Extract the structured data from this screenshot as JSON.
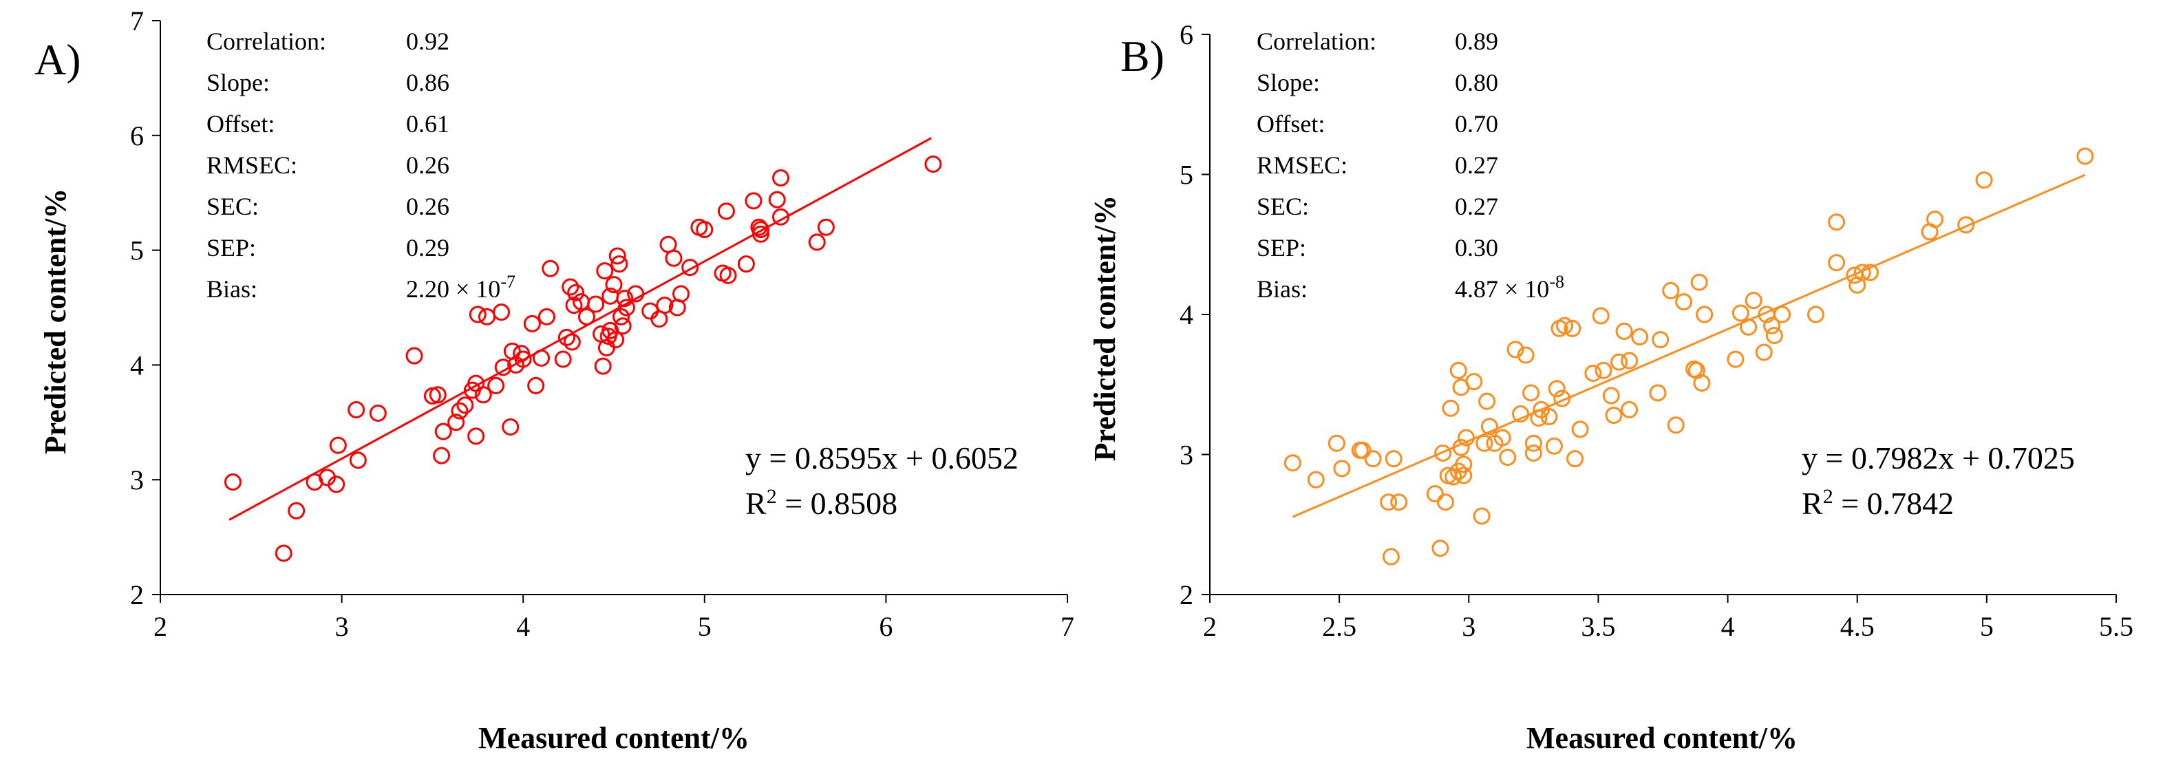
{
  "chart_data": [
    {
      "type": "scatter",
      "panel_label": "A)",
      "color": "#ff0000",
      "xlabel": "Measured content/%",
      "ylabel": "Predicted content/%",
      "xlim": [
        2,
        7
      ],
      "ylim": [
        2,
        7
      ],
      "xticks": [
        2,
        3,
        4,
        5,
        6,
        7
      ],
      "yticks": [
        2,
        3,
        4,
        5,
        6,
        7
      ],
      "xtick_labels": [
        "2",
        "3",
        "4",
        "5",
        "6",
        "7"
      ],
      "ytick_labels": [
        "2",
        "3",
        "4",
        "5",
        "6",
        "7"
      ],
      "stats": [
        {
          "label": "Correlation:",
          "value": "0.92"
        },
        {
          "label": "Slope:",
          "value": "0.86"
        },
        {
          "label": "Offset:",
          "value": "0.61"
        },
        {
          "label": "RMSEC:",
          "value": "0.26"
        },
        {
          "label": "SEC:",
          "value": "0.26"
        },
        {
          "label": "SEP:",
          "value": "0.29"
        },
        {
          "label": "Bias:",
          "value": "2.20 × 10",
          "exponent": "-7"
        }
      ],
      "equation": "y = 0.8595x + 0.6052",
      "r2_label": "R",
      "r2_sup": "2",
      "r2_value": " = 0.8508",
      "fit": {
        "slope": 0.8595,
        "intercept": 0.6052,
        "x_range": [
          2.38,
          6.25
        ]
      },
      "points": [
        [
          2.4,
          2.98
        ],
        [
          2.68,
          2.36
        ],
        [
          2.75,
          2.73
        ],
        [
          2.85,
          2.98
        ],
        [
          2.92,
          3.02
        ],
        [
          2.97,
          2.96
        ],
        [
          2.98,
          3.3
        ],
        [
          3.08,
          3.61
        ],
        [
          3.09,
          3.17
        ],
        [
          3.2,
          3.58
        ],
        [
          3.4,
          4.08
        ],
        [
          3.5,
          3.73
        ],
        [
          3.53,
          3.74
        ],
        [
          3.55,
          3.21
        ],
        [
          3.56,
          3.42
        ],
        [
          3.63,
          3.5
        ],
        [
          3.65,
          3.6
        ],
        [
          3.68,
          3.65
        ],
        [
          3.72,
          3.78
        ],
        [
          3.74,
          3.84
        ],
        [
          3.74,
          3.38
        ],
        [
          3.75,
          4.44
        ],
        [
          3.78,
          3.74
        ],
        [
          3.8,
          4.42
        ],
        [
          3.85,
          3.82
        ],
        [
          3.88,
          4.46
        ],
        [
          3.89,
          3.98
        ],
        [
          3.93,
          3.46
        ],
        [
          3.94,
          4.12
        ],
        [
          3.96,
          4.0
        ],
        [
          3.99,
          4.1
        ],
        [
          4.0,
          4.05
        ],
        [
          4.05,
          4.36
        ],
        [
          4.07,
          3.82
        ],
        [
          4.1,
          4.06
        ],
        [
          4.13,
          4.42
        ],
        [
          4.15,
          4.84
        ],
        [
          4.22,
          4.05
        ],
        [
          4.24,
          4.24
        ],
        [
          4.26,
          4.68
        ],
        [
          4.27,
          4.2
        ],
        [
          4.28,
          4.52
        ],
        [
          4.29,
          4.63
        ],
        [
          4.32,
          4.55
        ],
        [
          4.35,
          4.42
        ],
        [
          4.4,
          4.53
        ],
        [
          4.43,
          4.27
        ],
        [
          4.44,
          3.99
        ],
        [
          4.45,
          4.82
        ],
        [
          4.46,
          4.15
        ],
        [
          4.47,
          4.25
        ],
        [
          4.48,
          4.3
        ],
        [
          4.48,
          4.6
        ],
        [
          4.5,
          4.7
        ],
        [
          4.51,
          4.22
        ],
        [
          4.52,
          4.95
        ],
        [
          4.53,
          4.88
        ],
        [
          4.54,
          4.42
        ],
        [
          4.55,
          4.34
        ],
        [
          4.56,
          4.58
        ],
        [
          4.57,
          4.5
        ],
        [
          4.62,
          4.62
        ],
        [
          4.7,
          4.47
        ],
        [
          4.75,
          4.4
        ],
        [
          4.78,
          4.52
        ],
        [
          4.8,
          5.05
        ],
        [
          4.83,
          4.93
        ],
        [
          4.85,
          4.5
        ],
        [
          4.87,
          4.62
        ],
        [
          4.92,
          4.85
        ],
        [
          4.97,
          5.2
        ],
        [
          5.0,
          5.18
        ],
        [
          5.1,
          4.8
        ],
        [
          5.12,
          5.34
        ],
        [
          5.13,
          4.78
        ],
        [
          5.23,
          4.88
        ],
        [
          5.27,
          5.43
        ],
        [
          5.3,
          5.2
        ],
        [
          5.31,
          5.18
        ],
        [
          5.31,
          5.14
        ],
        [
          5.4,
          5.44
        ],
        [
          5.42,
          5.29
        ],
        [
          5.42,
          5.63
        ],
        [
          5.62,
          5.07
        ],
        [
          5.67,
          5.2
        ],
        [
          6.26,
          5.75
        ]
      ]
    },
    {
      "type": "scatter",
      "panel_label": "B)",
      "color": "#ff8c1a",
      "xlabel": "Measured content/%",
      "ylabel": "Predicted content/%",
      "xlim": [
        2,
        5.5
      ],
      "ylim": [
        2,
        6
      ],
      "xticks": [
        2,
        2.5,
        3,
        3.5,
        4,
        4.5,
        5,
        5.5
      ],
      "yticks": [
        2,
        3,
        4,
        5,
        6
      ],
      "xtick_labels": [
        "2",
        "2.5",
        "3",
        "3.5",
        "4",
        "4.5",
        "5",
        "5.5"
      ],
      "ytick_labels": [
        "2",
        "3",
        "4",
        "5",
        "6"
      ],
      "stats": [
        {
          "label": "Correlation:",
          "value": "0.89"
        },
        {
          "label": "Slope:",
          "value": "0.80"
        },
        {
          "label": "Offset:",
          "value": "0.70"
        },
        {
          "label": "RMSEC:",
          "value": "0.27"
        },
        {
          "label": "SEC:",
          "value": "0.27"
        },
        {
          "label": "SEP:",
          "value": "0.30"
        },
        {
          "label": "Bias:",
          "value": "4.87 × 10",
          "exponent": "-8"
        }
      ],
      "equation": "y = 0.7982x + 0.7025",
      "r2_label": "R",
      "r2_sup": "2",
      "r2_value": " = 0.7842",
      "fit": {
        "slope": 0.7982,
        "intercept": 0.7025,
        "x_range": [
          2.32,
          5.38
        ]
      },
      "points": [
        [
          2.32,
          2.94
        ],
        [
          2.41,
          2.82
        ],
        [
          2.49,
          3.08
        ],
        [
          2.51,
          2.9
        ],
        [
          2.58,
          3.03
        ],
        [
          2.59,
          3.03
        ],
        [
          2.63,
          2.97
        ],
        [
          2.69,
          2.66
        ],
        [
          2.7,
          2.27
        ],
        [
          2.71,
          2.97
        ],
        [
          2.73,
          2.66
        ],
        [
          2.87,
          2.72
        ],
        [
          2.89,
          2.33
        ],
        [
          2.9,
          3.01
        ],
        [
          2.91,
          2.66
        ],
        [
          2.92,
          2.85
        ],
        [
          2.93,
          3.33
        ],
        [
          2.94,
          2.84
        ],
        [
          2.96,
          3.6
        ],
        [
          2.96,
          2.88
        ],
        [
          2.97,
          3.05
        ],
        [
          2.97,
          3.48
        ],
        [
          2.98,
          2.93
        ],
        [
          2.98,
          2.85
        ],
        [
          2.99,
          3.12
        ],
        [
          3.02,
          3.52
        ],
        [
          3.05,
          2.56
        ],
        [
          3.06,
          3.08
        ],
        [
          3.07,
          3.38
        ],
        [
          3.08,
          3.2
        ],
        [
          3.1,
          3.08
        ],
        [
          3.13,
          3.12
        ],
        [
          3.15,
          2.98
        ],
        [
          3.18,
          3.75
        ],
        [
          3.2,
          3.29
        ],
        [
          3.22,
          3.71
        ],
        [
          3.24,
          3.44
        ],
        [
          3.25,
          3.08
        ],
        [
          3.25,
          3.01
        ],
        [
          3.27,
          3.26
        ],
        [
          3.28,
          3.32
        ],
        [
          3.31,
          3.27
        ],
        [
          3.33,
          3.06
        ],
        [
          3.34,
          3.47
        ],
        [
          3.35,
          3.9
        ],
        [
          3.36,
          3.4
        ],
        [
          3.37,
          3.92
        ],
        [
          3.4,
          3.9
        ],
        [
          3.41,
          2.97
        ],
        [
          3.43,
          3.18
        ],
        [
          3.48,
          3.58
        ],
        [
          3.51,
          3.99
        ],
        [
          3.52,
          3.6
        ],
        [
          3.55,
          3.42
        ],
        [
          3.56,
          3.28
        ],
        [
          3.58,
          3.66
        ],
        [
          3.6,
          3.88
        ],
        [
          3.62,
          3.32
        ],
        [
          3.62,
          3.67
        ],
        [
          3.66,
          3.84
        ],
        [
          3.73,
          3.44
        ],
        [
          3.74,
          3.82
        ],
        [
          3.78,
          4.17
        ],
        [
          3.8,
          3.21
        ],
        [
          3.83,
          4.09
        ],
        [
          3.87,
          3.61
        ],
        [
          3.88,
          3.6
        ],
        [
          3.89,
          4.23
        ],
        [
          3.9,
          3.51
        ],
        [
          3.91,
          4.0
        ],
        [
          4.03,
          3.68
        ],
        [
          4.05,
          4.01
        ],
        [
          4.08,
          3.91
        ],
        [
          4.1,
          4.1
        ],
        [
          4.14,
          3.73
        ],
        [
          4.15,
          4.0
        ],
        [
          4.17,
          3.92
        ],
        [
          4.18,
          3.85
        ],
        [
          4.21,
          4.0
        ],
        [
          4.34,
          4.0
        ],
        [
          4.42,
          4.37
        ],
        [
          4.42,
          4.66
        ],
        [
          4.49,
          4.28
        ],
        [
          4.5,
          4.21
        ],
        [
          4.52,
          4.3
        ],
        [
          4.55,
          4.3
        ],
        [
          4.78,
          4.59
        ],
        [
          4.8,
          4.68
        ],
        [
          4.92,
          4.64
        ],
        [
          4.99,
          4.96
        ],
        [
          5.38,
          5.13
        ]
      ]
    }
  ]
}
